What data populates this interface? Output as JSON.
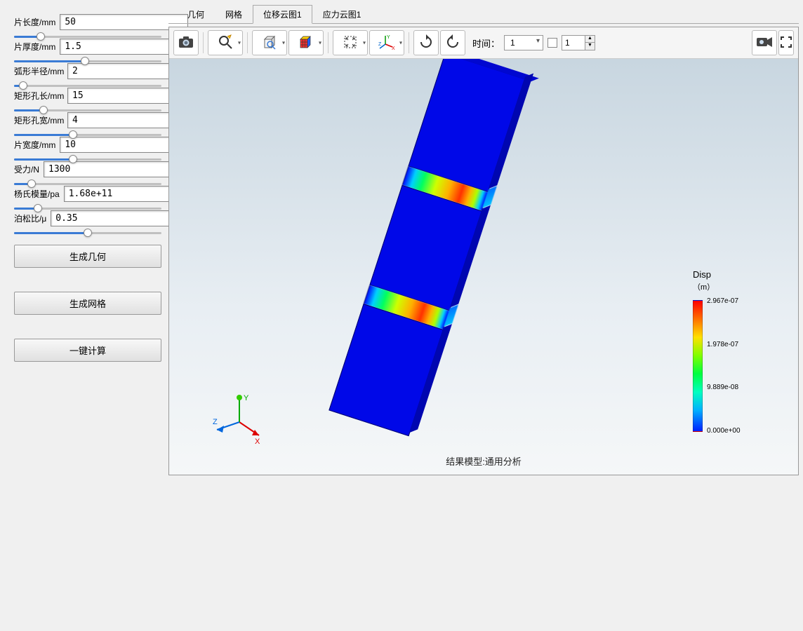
{
  "sidebar": {
    "params": [
      {
        "key": "p0",
        "label": "片长度/mm",
        "value": "50",
        "fill_pct": 18
      },
      {
        "key": "p1",
        "label": "片厚度/mm",
        "value": "1.5",
        "fill_pct": 48
      },
      {
        "key": "p2",
        "label": "弧形半径/mm",
        "value": "2",
        "fill_pct": 6
      },
      {
        "key": "p3",
        "label": "矩形孔长/mm",
        "value": "15",
        "fill_pct": 20
      },
      {
        "key": "p4",
        "label": "矩形孔宽/mm",
        "value": "4",
        "fill_pct": 40
      },
      {
        "key": "p5",
        "label": "片宽度/mm",
        "value": "10",
        "fill_pct": 40
      },
      {
        "key": "p6",
        "label": "受力/N",
        "value": "1300",
        "fill_pct": 12
      },
      {
        "key": "p7",
        "label": "杨氏模量/pa",
        "value": "1.68e+11",
        "fill_pct": 16
      },
      {
        "key": "p8",
        "label": "泊松比/μ",
        "value": "0.35",
        "fill_pct": 50
      }
    ],
    "buttons": {
      "gen_geom": "生成几何",
      "gen_mesh": "生成网格",
      "calc": "一键计算"
    }
  },
  "tabs": {
    "items": [
      {
        "label": "几何",
        "active": false
      },
      {
        "label": "网格",
        "active": false
      },
      {
        "label": "位移云图1",
        "active": true
      },
      {
        "label": "应力云图1",
        "active": false
      }
    ]
  },
  "toolbar": {
    "time_label": "时间：",
    "time_value": "1",
    "spin_value": "1"
  },
  "canvas": {
    "result_label": "结果模型:通用分析",
    "axis": {
      "x": "X",
      "y": "Y",
      "z": "Z"
    }
  },
  "legend": {
    "title": "Disp",
    "unit": "（m）",
    "ticks": [
      "2.967e-07",
      "1.978e-07",
      "9.889e-08",
      "0.000e+00"
    ],
    "colors": {
      "max": "#ff0000",
      "p75": "#ffe000",
      "p50": "#00ff40",
      "p25": "#00b0ff",
      "min": "#0020ff"
    }
  },
  "colors": {
    "beam_base": "#0008e8",
    "beam_shadow": "#0006b0",
    "bg_sky_top": "#c8d6e0",
    "bg_sky_bot": "#f5f7f8"
  }
}
